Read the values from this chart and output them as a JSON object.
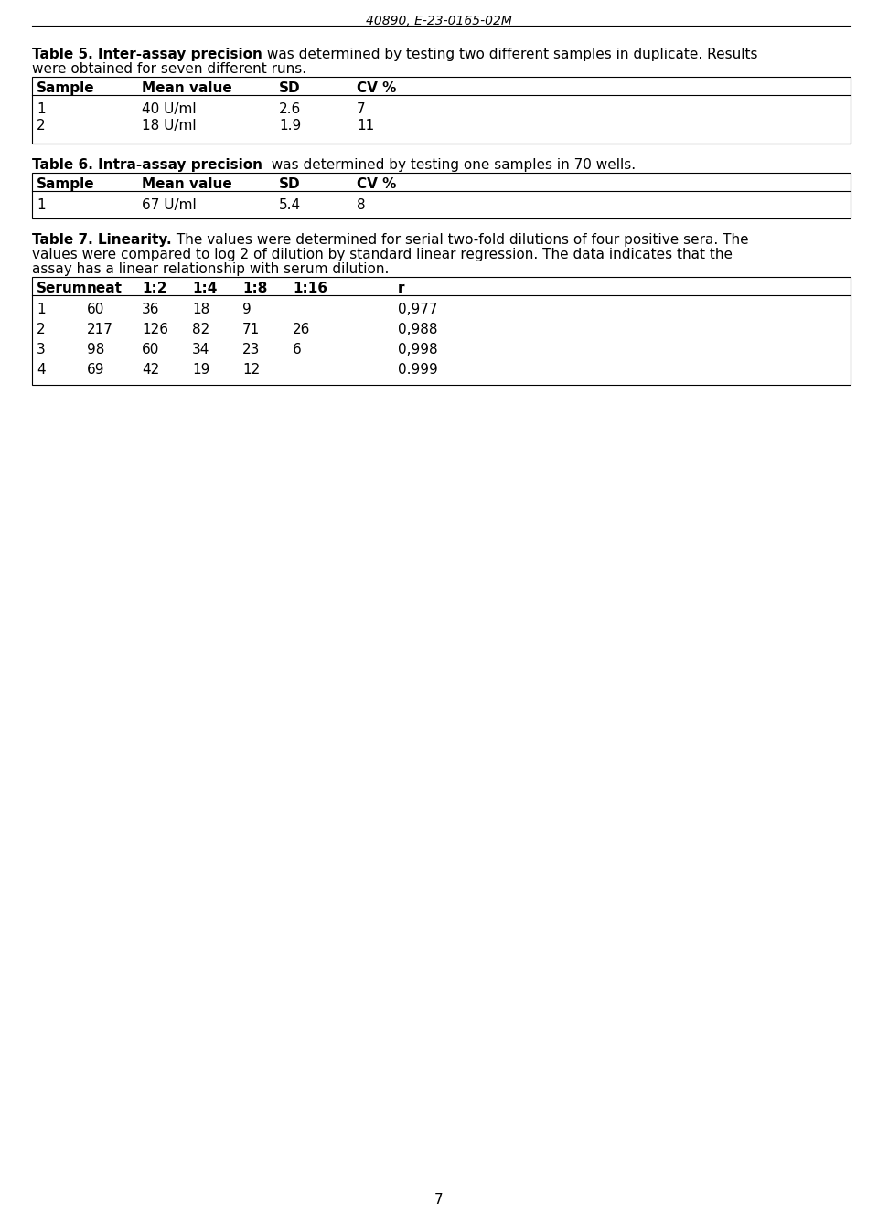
{
  "page_header": "40890, E-23-0165-02M",
  "page_number": "7",
  "table5_title_bold": "Table 5. Inter-assay precision",
  "table5_title_normal": " was determined by testing two different samples in duplicate. Results",
  "table5_title_line2": "were obtained for seven different runs.",
  "table5_headers": [
    "Sample",
    "Mean value",
    "SD",
    "CV %"
  ],
  "table5_rows": [
    [
      "1",
      "40 U/ml",
      "2.6",
      "7"
    ],
    [
      "2",
      "18 U/ml",
      "1.9",
      "11"
    ]
  ],
  "table6_title_bold": "Table 6. Intra-assay precision",
  "table6_title_normal": "  was determined by testing one samples in 70 wells.",
  "table6_headers": [
    "Sample",
    "Mean value",
    "SD",
    "CV %"
  ],
  "table6_rows": [
    [
      "1",
      "67 U/ml",
      "5.4",
      "8"
    ]
  ],
  "table7_title_bold": "Table 7. Linearity.",
  "table7_title_normal1": " The values were determined for serial two-fold dilutions of four positive sera. The",
  "table7_title_normal2": "values were compared to log 2 of dilution by standard linear regression. The data indicates that the",
  "table7_title_normal3": "assay has a linear relationship with serum dilution.",
  "table7_headers": [
    "Serum",
    "neat",
    "1:2",
    "1:4",
    "1:8",
    "1:16",
    "r"
  ],
  "table7_rows": [
    [
      "1",
      "60",
      "36",
      "18",
      "9",
      "",
      "0,977"
    ],
    [
      "2",
      "217",
      "126",
      "82",
      "71",
      "26",
      "0,988"
    ],
    [
      "3",
      "98",
      "60",
      "34",
      "23",
      "6",
      "0,998"
    ],
    [
      "4",
      "69",
      "42",
      "19",
      "12",
      "",
      "0.999"
    ]
  ],
  "bg_color": "#ffffff",
  "text_color": "#000000",
  "font_size": 11.0,
  "font_size_small": 10.5
}
